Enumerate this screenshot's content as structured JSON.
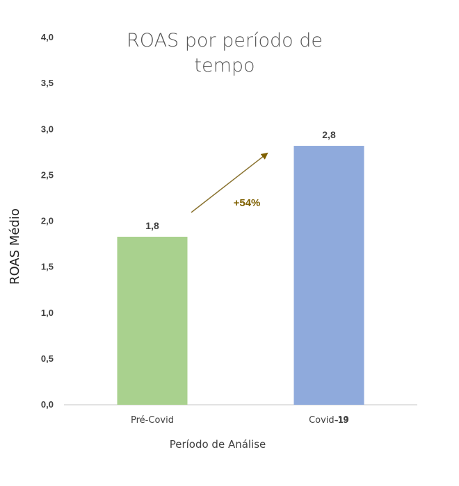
{
  "chart_data": {
    "type": "bar",
    "title_lines": [
      "ROAS por período de",
      "tempo"
    ],
    "xlabel": "Período de Análise",
    "ylabel": "ROAS Médio",
    "categories": [
      "Pré-Covid",
      "Covid-19"
    ],
    "values": [
      1.83,
      2.82
    ],
    "value_labels": [
      "1,8",
      "2,8"
    ],
    "colors": [
      "#a9d18e",
      "#8faadc"
    ],
    "ylim": [
      0,
      4.0
    ],
    "yticks": [
      0,
      0.5,
      1.0,
      1.5,
      2.0,
      2.5,
      3.0,
      3.5,
      4.0
    ],
    "ytick_labels": [
      "0,0",
      "0,5",
      "1,0",
      "1,5",
      "2,0",
      "2,5",
      "3,0",
      "3,5",
      "4,0"
    ],
    "grid": false,
    "annotation": {
      "text": "+54%",
      "color": "#7f6000"
    },
    "overlay_fragment": "-19"
  }
}
